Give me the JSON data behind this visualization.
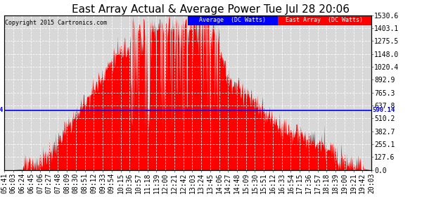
{
  "title": "East Array Actual & Average Power Tue Jul 28 20:06",
  "copyright": "Copyright 2015 Cartronics.com",
  "yticks": [
    0.0,
    127.6,
    255.1,
    382.7,
    510.2,
    637.8,
    765.3,
    892.9,
    1020.4,
    1148.0,
    1275.5,
    1403.1,
    1530.6
  ],
  "ymin": 0.0,
  "ymax": 1530.6,
  "average_line": 590.14,
  "average_label": "590.14",
  "legend_avg_label": "Average  (DC Watts)",
  "legend_east_label": "East Array  (DC Watts)",
  "bg_color": "#ffffff",
  "plot_bg_color": "#d8d8d8",
  "grid_color": "#ffffff",
  "fill_color": "#ff0000",
  "avg_line_color": "#0000ff",
  "title_fontsize": 11,
  "tick_fontsize": 7,
  "xtick_labels": [
    "05:41",
    "06:03",
    "06:24",
    "06:45",
    "07:06",
    "07:27",
    "07:48",
    "08:09",
    "08:30",
    "08:51",
    "09:12",
    "09:33",
    "09:54",
    "10:15",
    "10:36",
    "10:57",
    "11:18",
    "11:39",
    "12:00",
    "12:21",
    "12:42",
    "13:03",
    "13:24",
    "13:45",
    "14:06",
    "14:27",
    "14:48",
    "15:09",
    "15:30",
    "15:51",
    "16:12",
    "16:33",
    "16:54",
    "17:15",
    "17:36",
    "17:57",
    "18:18",
    "18:39",
    "19:00",
    "19:21",
    "19:42",
    "20:03"
  ],
  "base_profile": [
    0,
    2,
    8,
    30,
    80,
    160,
    280,
    420,
    540,
    680,
    800,
    950,
    1080,
    1180,
    1250,
    1300,
    1320,
    1330,
    1340,
    1350,
    1360,
    1370,
    1360,
    1340,
    1200,
    900,
    820,
    760,
    650,
    560,
    490,
    430,
    380,
    340,
    300,
    260,
    220,
    170,
    110,
    60,
    15,
    0
  ],
  "spike_profile": [
    0,
    0,
    0,
    0,
    0,
    0,
    0,
    0,
    0,
    0,
    0,
    0,
    0,
    0,
    1530,
    1400,
    1530,
    1400,
    1530,
    1450,
    1530,
    1530,
    1530,
    1530,
    1500,
    0,
    0,
    0,
    0,
    0,
    0,
    0,
    0,
    0,
    0,
    0,
    0,
    0,
    0,
    0,
    0,
    0
  ]
}
